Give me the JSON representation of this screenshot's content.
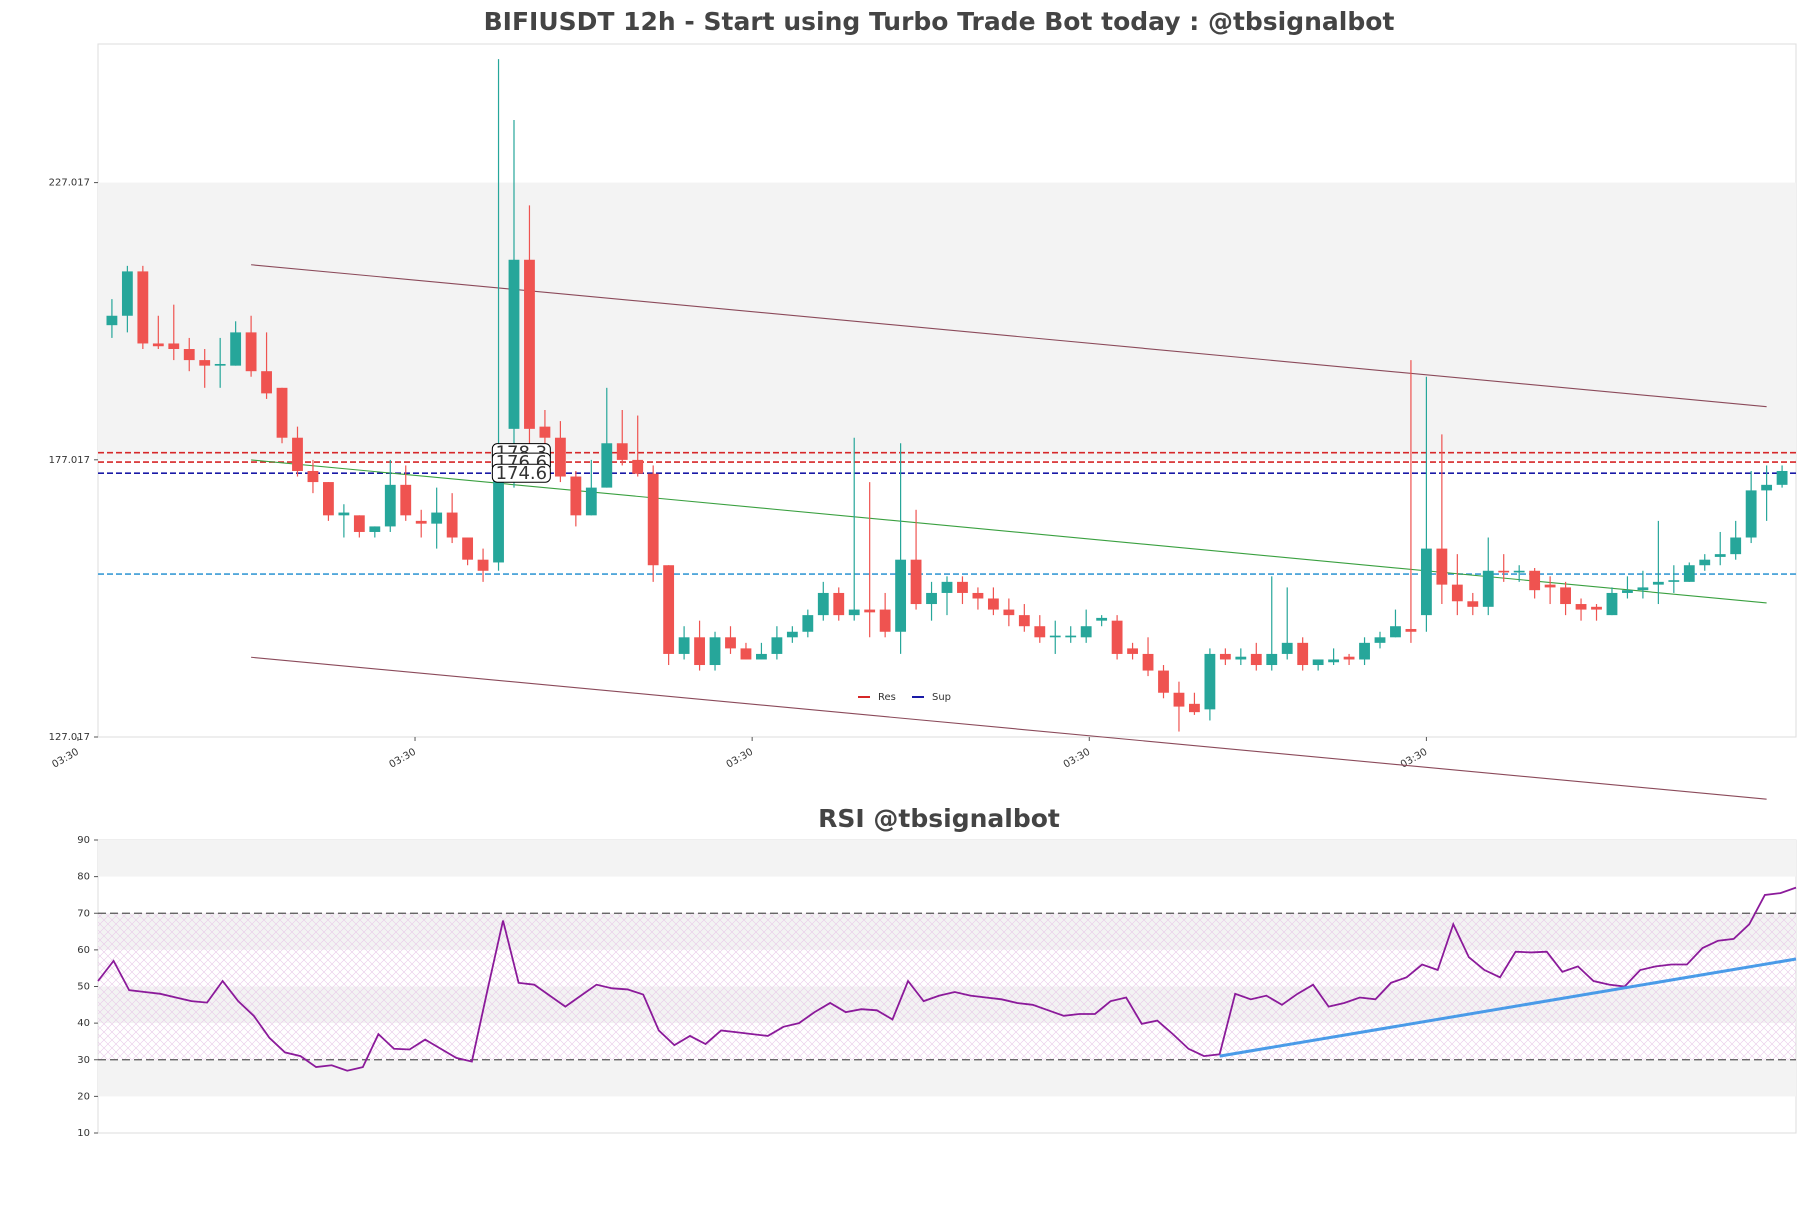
{
  "chart_data": [
    {
      "type": "candlestick",
      "title": "BIFIUSDT 12h - Start using Turbo Trade Bot today : @tbsignalbot",
      "up_color": "#26a69a",
      "down_color": "#ef5350",
      "open": [
        201.3,
        203,
        211,
        198,
        198,
        197,
        195,
        194,
        194,
        200,
        193,
        190,
        181,
        175,
        173,
        167,
        167,
        164,
        165,
        172.5,
        166,
        165.5,
        167.5,
        163,
        159,
        158.5,
        182.6,
        213.1,
        183,
        181,
        174,
        167,
        172,
        180,
        177,
        174.5,
        158,
        142,
        145,
        140,
        145,
        143,
        141,
        142,
        145,
        146,
        149,
        153,
        149,
        150,
        150,
        146,
        159,
        151,
        153,
        155,
        153,
        152,
        150,
        149,
        147,
        145,
        145,
        145,
        148,
        148,
        143,
        142,
        139,
        135,
        133,
        132,
        142,
        141,
        142,
        140,
        142,
        144,
        140,
        140.5,
        141.5,
        141,
        144,
        145,
        146.5,
        149,
        161,
        154.5,
        151.5,
        150.5,
        157,
        156.7,
        157,
        154.5,
        154,
        151,
        150.5,
        149,
        153,
        153.5,
        154.5,
        155,
        155,
        158,
        159.5,
        160,
        163,
        171.5,
        172.5
      ],
      "high": [
        206,
        212,
        212,
        203,
        205,
        199,
        197,
        199,
        202,
        203,
        200,
        190,
        183,
        177,
        173,
        169,
        167,
        165,
        177,
        176,
        168,
        172,
        171,
        163,
        161,
        249.3,
        238.3,
        222.9,
        186,
        184,
        175,
        177,
        190,
        186,
        185,
        176,
        158,
        147,
        148,
        146,
        147,
        144,
        144,
        147,
        147,
        150,
        155,
        154,
        181,
        173,
        153,
        180,
        168,
        155,
        156,
        156,
        154,
        154,
        152,
        151,
        149,
        148,
        147,
        150,
        149,
        149,
        144,
        145,
        140,
        137,
        135,
        143,
        143,
        143,
        144,
        156,
        154,
        145,
        141,
        143,
        142,
        145,
        146,
        150,
        195,
        192,
        181.6,
        160,
        153,
        163,
        160,
        158,
        157.5,
        156,
        155,
        152,
        151,
        154,
        156,
        157,
        166,
        158,
        158.5,
        160,
        164,
        166,
        175,
        176,
        176
      ],
      "low": [
        199,
        200,
        197,
        197,
        195,
        193,
        190,
        190,
        194,
        192,
        188,
        180,
        174,
        171,
        166,
        163,
        163,
        163,
        164,
        166,
        163,
        161,
        162,
        158,
        155,
        157,
        172,
        178,
        177,
        173,
        165,
        167,
        172,
        176,
        174,
        155,
        140,
        141,
        139,
        139,
        142,
        141,
        141,
        141,
        144,
        145,
        148,
        148,
        148,
        145,
        145,
        142,
        150,
        148,
        149,
        151,
        150,
        149,
        147,
        146,
        144,
        142,
        144,
        144,
        147,
        141,
        141,
        138,
        134,
        128,
        131,
        130,
        140,
        140,
        139,
        139,
        141,
        139,
        139,
        140,
        140,
        140,
        143,
        145,
        144,
        146,
        151,
        149,
        149,
        149,
        155,
        155,
        152,
        151,
        149,
        148,
        148,
        149,
        152,
        152,
        151,
        153,
        155,
        157,
        158,
        159,
        162,
        166,
        172
      ],
      "close": [
        203,
        211,
        198,
        197.5,
        197,
        195,
        194,
        194.3,
        200,
        193,
        189,
        181,
        175,
        173,
        167,
        167.5,
        164,
        165,
        172.5,
        167,
        165.5,
        167.5,
        163,
        159,
        157,
        174.3,
        213.1,
        182.6,
        181,
        174,
        167,
        172,
        180,
        177,
        174.5,
        158,
        142,
        145,
        140,
        145,
        143,
        141,
        142,
        145,
        146,
        149,
        153,
        149,
        150,
        149.5,
        146,
        159,
        151,
        153,
        155,
        153,
        152,
        150,
        149,
        147,
        145,
        145.3,
        145.3,
        147,
        148.5,
        142,
        142,
        139,
        135,
        132.5,
        131.5,
        142,
        141,
        141.5,
        140,
        142,
        144,
        140,
        141,
        141,
        141,
        144,
        145,
        147,
        146,
        161,
        154.5,
        151.5,
        150.5,
        157,
        156.7,
        157,
        153.5,
        154,
        151,
        150,
        150,
        153,
        153.5,
        154,
        155,
        155.3,
        158,
        159,
        160,
        163,
        171.5,
        172.5,
        175
      ],
      "xlim": [
        -0.9,
        108.9
      ],
      "ylim": [
        127.017,
        252.017
      ],
      "yticks": [
        127.017,
        177.017,
        227.017
      ],
      "xticks": [
        {
          "value": -2.2,
          "label": "03:30"
        },
        {
          "value": 19.6,
          "label": "03:30"
        },
        {
          "value": 41.4,
          "label": "03:30"
        },
        {
          "value": 63.2,
          "label": "03:30"
        },
        {
          "value": 85,
          "label": "03:30"
        }
      ],
      "bands": [
        [
          177.017,
          227.017
        ]
      ],
      "levels": [
        {
          "value": 178.3,
          "label": "178.3",
          "color": "#d62728"
        },
        {
          "value": 176.6,
          "label": "176.6",
          "color": "#d62728"
        },
        {
          "value": 174.6,
          "label": "174.6",
          "color": "#1a1aa6"
        },
        {
          "value": 156.4,
          "color": "#3a9bd5"
        }
      ],
      "lines": [
        {
          "x": [
            9,
            107
          ],
          "values": [
            212.2,
            186.6
          ],
          "color": "#8b4a5a"
        },
        {
          "x": [
            9,
            107
          ],
          "values": [
            177,
            151.2
          ],
          "color": "#3aa040"
        },
        {
          "x": [
            9,
            107
          ],
          "values": [
            141.4,
            115.8
          ],
          "color": "#8b4a5a"
        }
      ],
      "legend": [
        {
          "name": "Res",
          "color": "#d62728"
        },
        {
          "name": "Sup",
          "color": "#1a1aa6"
        }
      ]
    },
    {
      "type": "line",
      "title": "RSI @tbsignalbot",
      "color": "#8b1a9a",
      "values": [
        51.5,
        57,
        49,
        48.5,
        48,
        47,
        46,
        45.6,
        51.5,
        46,
        42,
        36,
        32,
        31,
        28,
        28.5,
        27,
        28,
        37,
        33,
        32.8,
        35.5,
        33,
        30.5,
        29.5,
        49,
        68,
        51,
        50.5,
        47.5,
        44.5,
        47.5,
        50.5,
        49.5,
        49.2,
        47.8,
        38,
        34,
        36.5,
        34.3,
        38,
        37.5,
        37,
        36.5,
        39,
        40,
        43,
        45.5,
        43,
        43.8,
        43.5,
        41,
        51.5,
        46,
        47.5,
        48.5,
        47.5,
        47,
        46.5,
        45.5,
        45,
        43.5,
        42,
        42.5,
        42.5,
        46,
        47,
        39.8,
        40.7,
        37,
        33,
        31,
        31.5,
        48,
        46.5,
        47.5,
        45,
        48,
        50.5,
        44.5,
        45.5,
        47,
        46.5,
        51,
        52.5,
        56,
        54.5,
        67,
        58,
        54.5,
        52.5,
        59.5,
        59.3,
        59.5,
        54,
        55.5,
        51.5,
        50.5,
        50,
        54.5,
        55.5,
        56,
        56,
        60.5,
        62.5,
        63,
        67,
        75,
        75.5,
        77
      ],
      "xlim": [
        0,
        109
      ],
      "ylim": [
        10,
        90
      ],
      "yticks": [
        10,
        20,
        30,
        40,
        50,
        60,
        70,
        80,
        90
      ],
      "bands": [
        [
          80,
          90
        ],
        [
          60,
          70
        ],
        [
          40,
          50
        ],
        [
          20,
          30
        ]
      ],
      "hatch": [
        30,
        70
      ],
      "hlines": [
        30,
        70
      ],
      "lines": [
        {
          "x": [
            72,
            109
          ],
          "values": [
            31,
            57.5
          ],
          "color": "#4a9be8"
        }
      ]
    }
  ]
}
